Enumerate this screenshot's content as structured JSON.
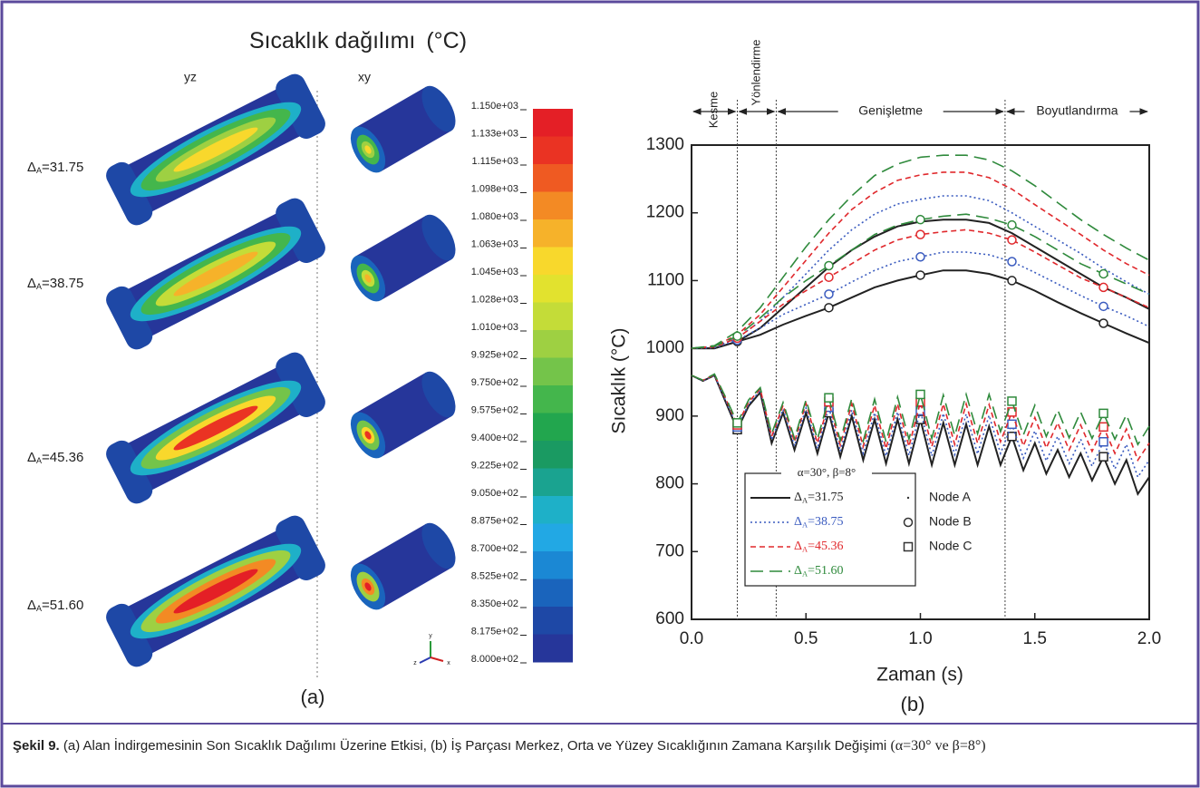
{
  "panel_a": {
    "title": "Sıcaklık dağılımı",
    "unit": "(°C)",
    "columns": [
      "yz",
      "xy"
    ],
    "rows": [
      {
        "symbol": "Δ",
        "sub": "A",
        "value": "=31.75"
      },
      {
        "symbol": "Δ",
        "sub": "A",
        "value": "=38.75"
      },
      {
        "symbol": "Δ",
        "sub": "A",
        "value": "=45.36"
      },
      {
        "symbol": "Δ",
        "sub": "A",
        "value": "=51.60"
      }
    ],
    "colorbar": {
      "labels": [
        "1.150e+03",
        "1.133e+03",
        "1.115e+03",
        "1.098e+03",
        "1.080e+03",
        "1.063e+03",
        "1.045e+03",
        "1.028e+03",
        "1.010e+03",
        "9.925e+02",
        "9.750e+02",
        "9.575e+02",
        "9.400e+02",
        "9.225e+02",
        "9.050e+02",
        "8.875e+02",
        "8.700e+02",
        "8.525e+02",
        "8.350e+02",
        "8.175e+02",
        "8.000e+02"
      ],
      "colors": [
        "#e41f26",
        "#ea3323",
        "#ef5a22",
        "#f38a24",
        "#f6b22a",
        "#f8d82c",
        "#e2e22e",
        "#c4dc38",
        "#9ed042",
        "#74c44a",
        "#44b64c",
        "#22a64e",
        "#1a9a62",
        "#1aa390",
        "#1eb0c8",
        "#22a8e4",
        "#1b88d4",
        "#1a64bc",
        "#1e48a6",
        "#26369a"
      ]
    },
    "axes": [
      "y",
      "z",
      "x"
    ],
    "caption": "(a)"
  },
  "chart_data": {
    "type": "line",
    "xlabel": "Zaman (s)",
    "ylabel": "Sıcaklık (°C)",
    "caption": "(b)",
    "xlim": [
      0,
      2
    ],
    "ylim": [
      600,
      1300
    ],
    "xticks": [
      {
        "value": 0,
        "label": "0.0"
      },
      {
        "value": 0.5,
        "label": "0.5"
      },
      {
        "value": 1,
        "label": "1.0"
      },
      {
        "value": 1.5,
        "label": "1.5"
      },
      {
        "value": 2,
        "label": "2.0"
      }
    ],
    "yticks": [
      600,
      700,
      800,
      900,
      1000,
      1100,
      1200,
      1300
    ],
    "phases": [
      {
        "label": "Kesme",
        "xlim": [
          0,
          0.2
        ]
      },
      {
        "label": "Yönlendirme",
        "xlim": [
          0.2,
          0.37
        ]
      },
      {
        "label": "Genişletme",
        "xlim": [
          0.37,
          1.37
        ]
      },
      {
        "label": "Boyutlandırma",
        "xlim": [
          1.37,
          2
        ]
      }
    ],
    "legend": {
      "title": "α=30°, β=8°"
    },
    "marker_x": [
      0.2,
      0.6,
      1.0,
      1.4,
      1.8
    ],
    "nodes": [
      {
        "name": "Node A",
        "marker": "dot",
        "x": [
          0,
          0.1,
          0.2,
          0.3,
          0.4,
          0.5,
          0.6,
          0.7,
          0.8,
          0.9,
          1.0,
          1.1,
          1.2,
          1.3,
          1.4,
          1.5,
          1.6,
          1.7,
          1.8,
          1.9,
          2.0
        ]
      },
      {
        "name": "Node B",
        "marker": "circle",
        "x": [
          0,
          0.1,
          0.2,
          0.3,
          0.4,
          0.5,
          0.6,
          0.7,
          0.8,
          0.9,
          1.0,
          1.1,
          1.2,
          1.3,
          1.4,
          1.5,
          1.6,
          1.7,
          1.8,
          1.9,
          2.0
        ]
      },
      {
        "name": "Node C",
        "marker": "square",
        "x": [
          0,
          0.05,
          0.1,
          0.15,
          0.2,
          0.25,
          0.3,
          0.35,
          0.4,
          0.45,
          0.5,
          0.55,
          0.6,
          0.65,
          0.7,
          0.75,
          0.8,
          0.85,
          0.9,
          0.95,
          1.0,
          1.05,
          1.1,
          1.15,
          1.2,
          1.25,
          1.3,
          1.35,
          1.4,
          1.45,
          1.5,
          1.55,
          1.6,
          1.65,
          1.7,
          1.75,
          1.8,
          1.85,
          1.9,
          1.95,
          2.0
        ]
      }
    ],
    "cases": [
      {
        "symbol": "Δ",
        "sub": "A",
        "value": "=31.75",
        "color": "#222222",
        "dash": "solid",
        "values": [
          [
            1000,
            1000,
            1010,
            1030,
            1060,
            1090,
            1120,
            1145,
            1165,
            1180,
            1187,
            1190,
            1190,
            1185,
            1170,
            1150,
            1130,
            1110,
            1090,
            1075,
            1058
          ],
          [
            1000,
            1000,
            1010,
            1020,
            1035,
            1048,
            1060,
            1075,
            1090,
            1100,
            1108,
            1115,
            1115,
            1110,
            1100,
            1085,
            1068,
            1052,
            1037,
            1022,
            1008
          ],
          [
            960,
            952,
            960,
            920,
            880,
            915,
            935,
            860,
            905,
            850,
            905,
            845,
            905,
            840,
            900,
            835,
            895,
            830,
            895,
            830,
            895,
            828,
            890,
            828,
            888,
            828,
            885,
            828,
            870,
            820,
            860,
            815,
            850,
            810,
            845,
            805,
            840,
            800,
            835,
            785,
            810
          ]
        ]
      },
      {
        "symbol": "Δ",
        "sub": "A",
        "value": "=38.75",
        "color": "#3a5bbf",
        "dash": "dotted",
        "values": [
          [
            1000,
            1002,
            1015,
            1040,
            1075,
            1110,
            1145,
            1175,
            1198,
            1213,
            1220,
            1225,
            1225,
            1218,
            1200,
            1180,
            1160,
            1140,
            1118,
            1098,
            1080
          ],
          [
            1000,
            1001,
            1012,
            1030,
            1050,
            1065,
            1080,
            1098,
            1115,
            1128,
            1135,
            1142,
            1142,
            1138,
            1128,
            1112,
            1095,
            1078,
            1062,
            1048,
            1032
          ],
          [
            960,
            952,
            960,
            922,
            884,
            918,
            938,
            865,
            910,
            856,
            912,
            852,
            913,
            848,
            909,
            845,
            905,
            841,
            906,
            842,
            908,
            841,
            904,
            843,
            903,
            844,
            901,
            845,
            888,
            838,
            878,
            834,
            870,
            830,
            866,
            826,
            862,
            822,
            858,
            810,
            835
          ]
        ]
      },
      {
        "symbol": "Δ",
        "sub": "A",
        "value": "=45.36",
        "color": "#e0282c",
        "dash": "dashed",
        "values": [
          [
            1000,
            1003,
            1020,
            1050,
            1090,
            1130,
            1170,
            1205,
            1230,
            1248,
            1256,
            1260,
            1260,
            1252,
            1235,
            1212,
            1190,
            1168,
            1145,
            1125,
            1108
          ],
          [
            1000,
            1002,
            1015,
            1040,
            1065,
            1085,
            1105,
            1125,
            1145,
            1160,
            1168,
            1172,
            1175,
            1170,
            1160,
            1142,
            1123,
            1104,
            1090,
            1075,
            1060
          ],
          [
            960,
            953,
            961,
            925,
            887,
            921,
            940,
            870,
            916,
            862,
            919,
            860,
            921,
            857,
            918,
            855,
            916,
            852,
            918,
            855,
            921,
            855,
            918,
            858,
            918,
            860,
            917,
            862,
            906,
            856,
            898,
            853,
            890,
            850,
            887,
            848,
            884,
            845,
            881,
            835,
            860
          ]
        ]
      },
      {
        "symbol": "Δ",
        "sub": "A",
        "value": "=51.60",
        "color": "#2f8a3c",
        "dash": "longdash",
        "values": [
          [
            1000,
            1004,
            1025,
            1060,
            1105,
            1150,
            1190,
            1225,
            1255,
            1272,
            1282,
            1285,
            1285,
            1278,
            1262,
            1240,
            1215,
            1190,
            1168,
            1148,
            1130
          ],
          [
            1000,
            1003,
            1018,
            1045,
            1075,
            1100,
            1122,
            1145,
            1168,
            1182,
            1190,
            1195,
            1198,
            1192,
            1182,
            1165,
            1145,
            1125,
            1110,
            1095,
            1080
          ],
          [
            960,
            953,
            962,
            927,
            890,
            924,
            942,
            874,
            920,
            867,
            924,
            866,
            927,
            864,
            926,
            863,
            925,
            862,
            928,
            866,
            932,
            867,
            931,
            871,
            932,
            874,
            932,
            877,
            922,
            872,
            916,
            870,
            909,
            868,
            906,
            867,
            904,
            866,
            902,
            858,
            885
          ]
        ]
      }
    ]
  },
  "caption": {
    "label": "Şekil 9.",
    "text": "(a) Alan İndirgemesinin Son Sıcaklık Dağılımı Üzerine Etkisi, (b) İş Parçası Merkez, Orta ve Yüzey Sıcaklığının Zamana Karşılık Değişimi",
    "math": "(α=30° ve β=8°)"
  }
}
